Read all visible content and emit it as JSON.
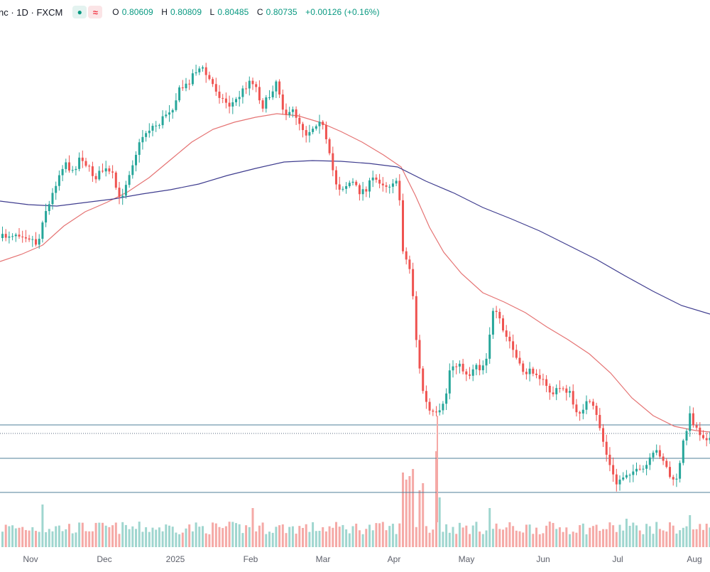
{
  "header": {
    "title": "nc · 1D · FXCM",
    "ohlc": {
      "o_label": "O",
      "o": "0.80609",
      "h_label": "H",
      "h": "0.80809",
      "l_label": "L",
      "l": "0.80485",
      "c_label": "C",
      "c": "0.80735",
      "change": "+0.00126 (+0.16%)"
    },
    "badge_dot": "●",
    "badge_wave": "≈"
  },
  "colors": {
    "up": "#26a69a",
    "down": "#ef5350",
    "vol_up": "#9fd6cf",
    "vol_down": "#f5a9a6",
    "ma_fast": "#e57373",
    "ma_slow": "#3f3d8f",
    "hline": "#4f7f99",
    "axis_text": "#5d606b"
  },
  "chart_data": {
    "type": "candlestick",
    "x_axis_labels": [
      "Nov",
      "Dec",
      "2025",
      "Feb",
      "Mar",
      "Apr",
      "May",
      "Jun",
      "Jul",
      "Aug"
    ],
    "grid": false,
    "series": [
      {
        "kind": "candles"
      },
      {
        "kind": "moving_average",
        "role": "fast"
      },
      {
        "kind": "moving_average",
        "role": "slow"
      },
      {
        "kind": "volume"
      }
    ],
    "horizontal_levels": [
      "solid",
      "dotted",
      "solid",
      "solid"
    ]
  }
}
